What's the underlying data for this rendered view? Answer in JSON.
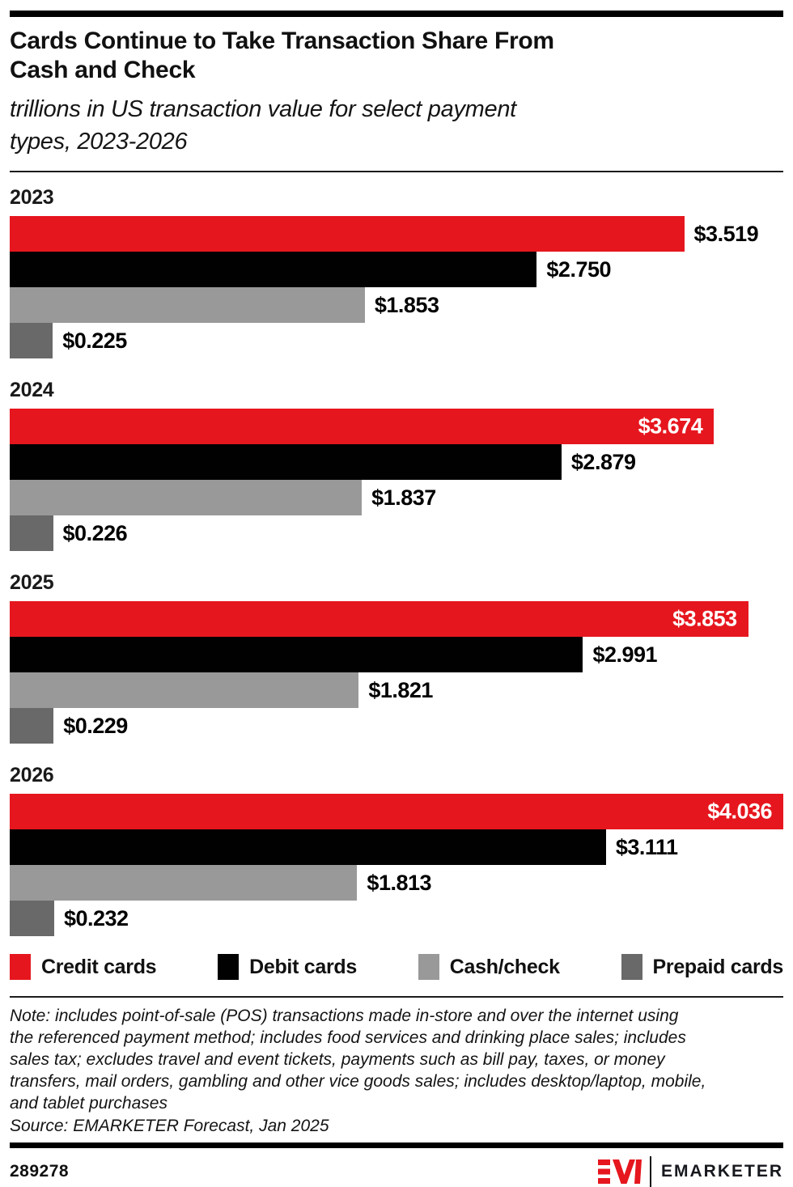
{
  "accent_red": "#e6161e",
  "header": {
    "title": "Cards Continue to Take Transaction Share From\nCash and Check",
    "subtitle": "trillions in US transaction value for select payment\ntypes, 2023-2026"
  },
  "chart_data": {
    "type": "bar",
    "orientation": "horizontal",
    "unit": "trillions of US dollars",
    "categories": [
      "2023",
      "2024",
      "2025",
      "2026"
    ],
    "series": [
      {
        "name": "Credit cards",
        "color": "#e6161e",
        "values": [
          3.519,
          3.674,
          3.853,
          4.036
        ],
        "labels": [
          "$3.519",
          "$3.674",
          "$3.853",
          "$4.036"
        ]
      },
      {
        "name": "Debit cards",
        "color": "#010101",
        "values": [
          2.75,
          2.879,
          2.991,
          3.111
        ],
        "labels": [
          "$2.750",
          "$2.879",
          "$2.991",
          "$3.111"
        ]
      },
      {
        "name": "Cash/check",
        "color": "#999999",
        "values": [
          1.853,
          1.837,
          1.821,
          1.813
        ],
        "labels": [
          "$1.853",
          "$1.837",
          "$1.821",
          "$1.813"
        ]
      },
      {
        "name": "Prepaid cards",
        "color": "#696969",
        "values": [
          0.225,
          0.226,
          0.229,
          0.232
        ],
        "labels": [
          "$0.225",
          "$0.226",
          "$0.229",
          "$0.232"
        ]
      }
    ],
    "xmax": 4.036,
    "grid": false,
    "axis_ticks": "none (values shown as data labels)",
    "legend_position": "bottom",
    "title": "Cards Continue to Take Transaction Share From Cash and Check",
    "subtitle": "trillions in US transaction value for select payment types, 2023-2026"
  },
  "footnote": {
    "note": "Note: includes point-of-sale (POS) transactions made in-store and over the internet using\nthe referenced payment method; includes food services and drinking place sales; includes\nsales tax; excludes travel and event tickets, payments such as bill pay, taxes, or money\ntransfers, mail orders, gambling and other vice goods sales; includes desktop/laptop, mobile,\nand tablet purchases",
    "source": "Source: EMARKETER Forecast, Jan 2025"
  },
  "footer": {
    "chart_id": "289278",
    "brand": "EMARKETER"
  }
}
